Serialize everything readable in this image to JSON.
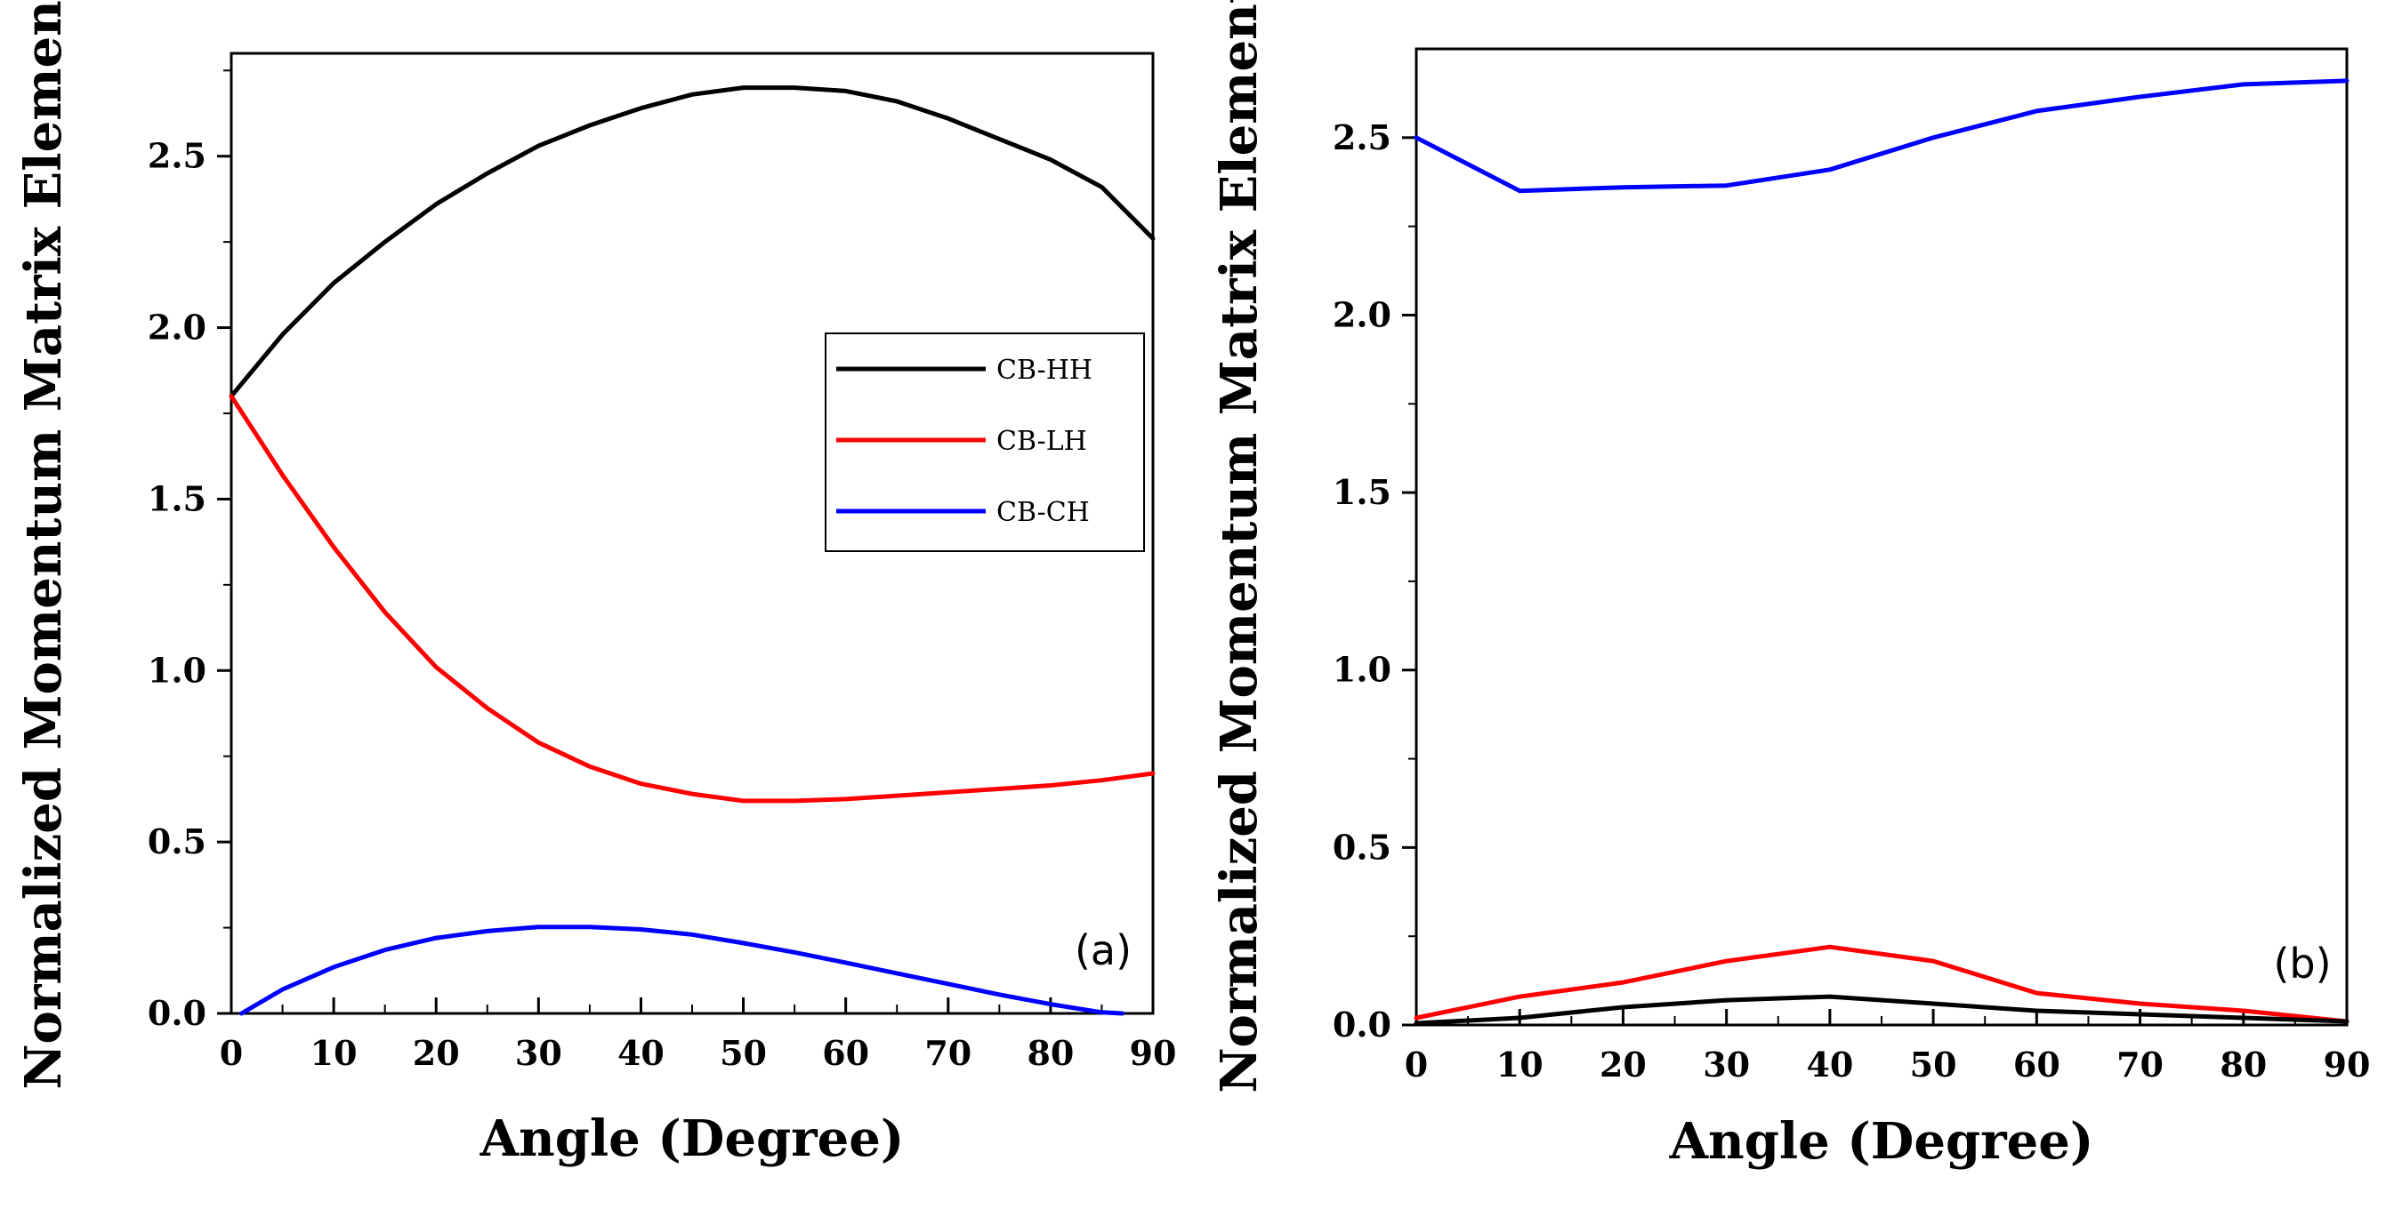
{
  "figure": {
    "colors": {
      "CB-HH": "#000000",
      "CB-LH": "#ff0000",
      "CB-CH": "#0000ff"
    }
  },
  "chart_data": [
    {
      "type": "line",
      "panel_label": "(a)",
      "xlabel": "Angle (Degree)",
      "ylabel": "Normalized Momentum Matrix Element",
      "xlim": [
        0,
        90
      ],
      "ylim": [
        0,
        2.8
      ],
      "xticks": [
        0,
        10,
        20,
        30,
        40,
        50,
        60,
        70,
        80,
        90
      ],
      "yticks": [
        0.0,
        0.5,
        1.0,
        1.5,
        2.0,
        2.5
      ],
      "xtick_labels": [
        "0",
        "10",
        "20",
        "30",
        "40",
        "50",
        "60",
        "70",
        "80",
        "90"
      ],
      "ytick_labels": [
        "0.0",
        "0.5",
        "1.0",
        "1.5",
        "2.0",
        "2.5"
      ],
      "grid": false,
      "legend": {
        "placement": "right-center",
        "entries": [
          "CB-HH",
          "CB-LH",
          "CB-CH"
        ]
      },
      "x": [
        0,
        5,
        10,
        15,
        20,
        25,
        30,
        35,
        40,
        45,
        50,
        55,
        60,
        65,
        70,
        75,
        80,
        85,
        90
      ],
      "series": [
        {
          "name": "CB-HH",
          "color": "#000000",
          "values": [
            1.8,
            1.98,
            2.13,
            2.25,
            2.36,
            2.45,
            2.53,
            2.59,
            2.64,
            2.68,
            2.7,
            2.7,
            2.69,
            2.66,
            2.61,
            2.55,
            2.49,
            2.41,
            2.26
          ]
        },
        {
          "name": "CB-LH",
          "color": "#ff0000",
          "values": [
            1.8,
            1.57,
            1.36,
            1.17,
            1.01,
            0.89,
            0.79,
            0.72,
            0.67,
            0.64,
            0.62,
            0.62,
            0.625,
            0.635,
            0.645,
            0.655,
            0.665,
            0.68,
            0.7
          ]
        },
        {
          "name": "CB-CH",
          "color": "#0000ff",
          "x": [
            1,
            5,
            10,
            15,
            20,
            25,
            30,
            35,
            40,
            45,
            50,
            55,
            60,
            65,
            70,
            75,
            80,
            85,
            87
          ],
          "values": [
            0.0,
            0.07,
            0.135,
            0.185,
            0.22,
            0.24,
            0.252,
            0.252,
            0.245,
            0.23,
            0.205,
            0.178,
            0.148,
            0.117,
            0.086,
            0.055,
            0.027,
            0.003,
            0.0
          ]
        }
      ]
    },
    {
      "type": "line",
      "panel_label": "(b)",
      "xlabel": "Angle (Degree)",
      "ylabel": "Normalized Momentum Matrix Element",
      "xlim": [
        0,
        90
      ],
      "ylim": [
        0,
        2.75
      ],
      "xticks": [
        0,
        10,
        20,
        30,
        40,
        50,
        60,
        70,
        80,
        90
      ],
      "yticks": [
        0.0,
        0.5,
        1.0,
        1.5,
        2.0,
        2.5
      ],
      "xtick_labels": [
        "0",
        "10",
        "20",
        "30",
        "40",
        "50",
        "60",
        "70",
        "80",
        "90"
      ],
      "ytick_labels": [
        "0.0",
        "0.5",
        "1.0",
        "1.5",
        "2.0",
        "2.5"
      ],
      "grid": false,
      "x": [
        0,
        10,
        20,
        30,
        40,
        50,
        60,
        70,
        80,
        90
      ],
      "series": [
        {
          "name": "CB-CH",
          "color": "#0000ff",
          "values": [
            2.5,
            2.35,
            2.36,
            2.365,
            2.41,
            2.5,
            2.575,
            2.615,
            2.65,
            2.66
          ]
        },
        {
          "name": "CB-LH",
          "color": "#ff0000",
          "values": [
            0.02,
            0.08,
            0.12,
            0.18,
            0.22,
            0.18,
            0.09,
            0.06,
            0.04,
            0.01
          ]
        },
        {
          "name": "CB-HH",
          "color": "#000000",
          "values": [
            0.005,
            0.02,
            0.05,
            0.07,
            0.08,
            0.06,
            0.04,
            0.03,
            0.02,
            0.01
          ]
        }
      ]
    }
  ]
}
